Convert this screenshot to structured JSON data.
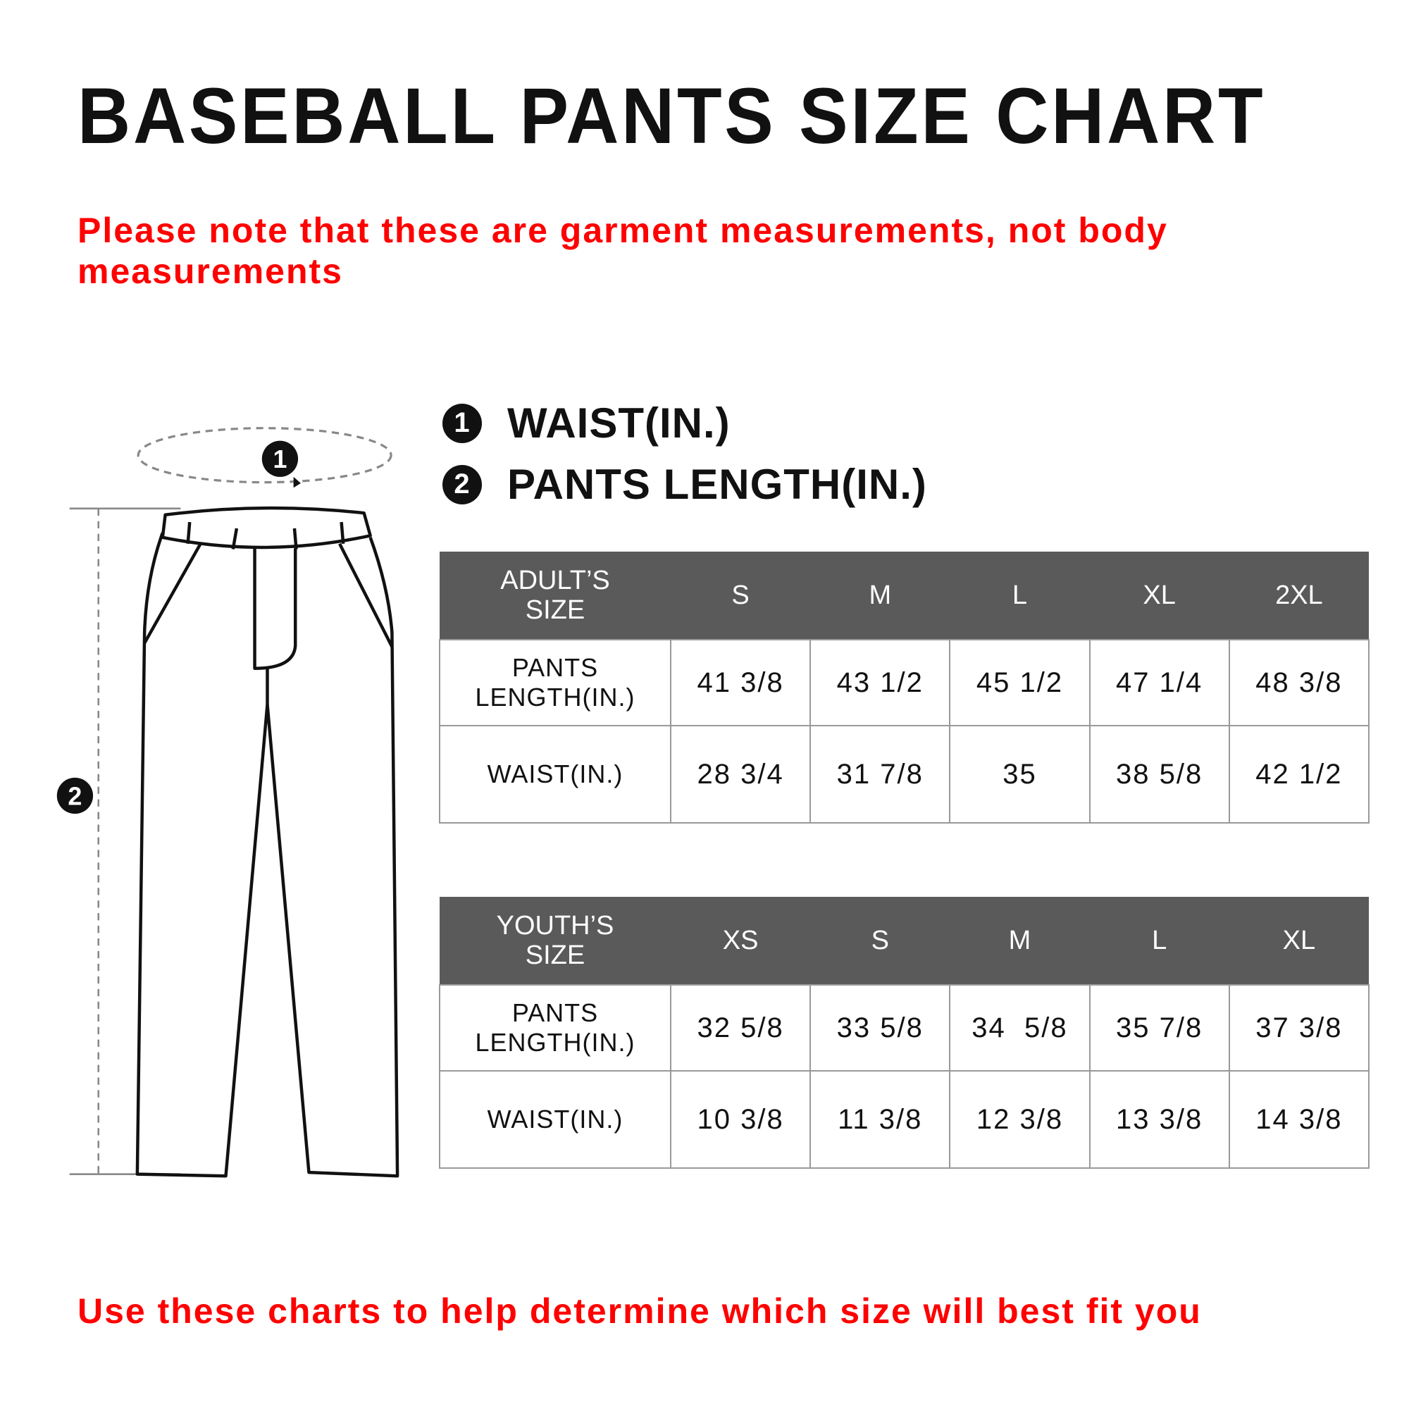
{
  "title": "BASEBALL PANTS SIZE CHART",
  "note_top": "Please note that these are garment measurements, not body measurements",
  "note_bottom": "Use these charts to help determine which size will best fit you",
  "accent_color": "#ff0000",
  "header_color": "#5a5a5a",
  "legend": [
    {
      "num": "1",
      "label": "WAIST(IN.)"
    },
    {
      "num": "2",
      "label": "PANTS LENGTH(IN.)"
    }
  ],
  "diagram": {
    "marker_waist": "1",
    "marker_length": "2",
    "icon": "pants-outline"
  },
  "adult": {
    "header": [
      "ADULT’S SIZE",
      "S",
      "M",
      "L",
      "XL",
      "2XL"
    ],
    "rows": [
      {
        "label": "PANTS LENGTH(IN.)",
        "values": [
          "41 3/8",
          "43 1/2",
          "45 1/2",
          "47 1/4",
          "48 3/8"
        ]
      },
      {
        "label": "WAIST(IN.)",
        "values": [
          "28 3/4",
          "31 7/8",
          "35",
          "38 5/8",
          "42 1/2"
        ]
      }
    ]
  },
  "youth": {
    "header": [
      "YOUTH’S SIZE",
      "XS",
      "S",
      "M",
      "L",
      "XL"
    ],
    "rows": [
      {
        "label": "PANTS LENGTH(IN.)",
        "values": [
          "32 5/8",
          "33 5/8",
          "34  5/8",
          "35 7/8",
          "37 3/8"
        ]
      },
      {
        "label": "WAIST(IN.)",
        "values": [
          "10 3/8",
          "11 3/8",
          "12 3/8",
          "13 3/8",
          "14 3/8"
        ]
      }
    ]
  }
}
